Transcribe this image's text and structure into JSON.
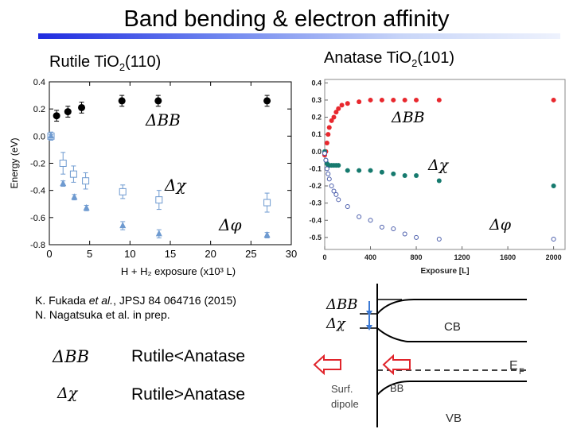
{
  "slide": {
    "title": "Band bending & electron affinity",
    "left_label": {
      "prefix": "Rutile Ti",
      "o": "O",
      "sub": "2",
      "suffix": "(110)"
    },
    "right_label": {
      "prefix": "Anatase Ti",
      "o": "O",
      "sub": "2",
      "suffix": "(101)"
    },
    "reference_1": {
      "pre": "K. Fukada ",
      "em": "et al.",
      "post": ", JPSJ 84 064716 (2015)"
    },
    "reference_2": "N. Nagatsuka et al. in prep.",
    "comparison": [
      {
        "symbol": "ΔBB",
        "text": "Rutile<Anatase"
      },
      {
        "symbol": "Δχ",
        "text": "Rutile>Anatase"
      }
    ]
  },
  "chart_data": [
    {
      "type": "scatter",
      "xlabel": "H + H₂ exposure (x10³ L)",
      "ylabel": "Energy (eV)",
      "xlim": [
        0,
        30
      ],
      "ylim": [
        -0.8,
        0.4
      ],
      "x_ticks": [
        "0",
        "5",
        "10",
        "15",
        "20",
        "25",
        "30"
      ],
      "y_ticks": [
        "0.4",
        "0.2",
        "0.0",
        "-0.2",
        "-0.4",
        "-0.6",
        "-0.8"
      ],
      "annotations": [
        "ΔBB",
        "Δχ",
        "Δφ"
      ],
      "series": [
        {
          "name": "ΔBB",
          "marker": "filled-circle",
          "color": "#000000",
          "x": [
            0.9,
            2.3,
            4.0,
            9.0,
            13.5,
            27.0
          ],
          "y": [
            0.15,
            0.18,
            0.21,
            0.26,
            0.26,
            0.26
          ],
          "err": [
            0.04,
            0.04,
            0.04,
            0.04,
            0.04,
            0.04
          ]
        },
        {
          "name": "Δχ",
          "marker": "open-square",
          "color": "#6e9ad0",
          "x": [
            0.2,
            1.7,
            3.0,
            4.5,
            9.1,
            13.6,
            27.0
          ],
          "y": [
            0.0,
            -0.2,
            -0.28,
            -0.33,
            -0.41,
            -0.47,
            -0.49
          ],
          "err": [
            0.03,
            0.08,
            0.06,
            0.06,
            0.05,
            0.07,
            0.07
          ]
        },
        {
          "name": "Δφ",
          "marker": "filled-triangle",
          "color": "#6e9ad0",
          "x": [
            0.2,
            1.7,
            3.1,
            4.6,
            9.1,
            13.6,
            27.0
          ],
          "y": [
            0.0,
            -0.35,
            -0.45,
            -0.53,
            -0.66,
            -0.72,
            -0.73
          ],
          "err": [
            0.01,
            0.02,
            0.02,
            0.02,
            0.03,
            0.03,
            0.02
          ]
        }
      ]
    },
    {
      "type": "scatter",
      "xlabel": "Exposure [L]",
      "ylabel": "",
      "xlim": [
        0,
        2100
      ],
      "ylim": [
        -0.57,
        0.42
      ],
      "x_ticks": [
        "0",
        "400",
        "800",
        "1200",
        "1600",
        "2000"
      ],
      "y_ticks": [
        "0.4",
        "0.3",
        "0.2",
        "0.1",
        "0.0",
        "-0.1",
        "-0.2",
        "-0.3",
        "-0.4",
        "-0.5"
      ],
      "annotations": [
        "ΔBB",
        "Δχ",
        "Δφ"
      ],
      "series": [
        {
          "name": "ΔBB",
          "marker": "filled-circle",
          "color": "#e8282e",
          "x": [
            0,
            10,
            20,
            30,
            40,
            60,
            80,
            100,
            120,
            150,
            200,
            300,
            400,
            500,
            600,
            700,
            800,
            1000,
            2000
          ],
          "y": [
            -0.02,
            0.0,
            0.05,
            0.1,
            0.14,
            0.18,
            0.2,
            0.23,
            0.25,
            0.27,
            0.28,
            0.29,
            0.3,
            0.3,
            0.3,
            0.3,
            0.3,
            0.3,
            0.3
          ],
          "err": []
        },
        {
          "name": "Δχ",
          "marker": "filled-circle",
          "color": "#167a6e",
          "x": [
            0,
            10,
            20,
            30,
            40,
            60,
            80,
            100,
            120,
            200,
            300,
            400,
            500,
            600,
            700,
            800,
            1000,
            2000
          ],
          "y": [
            0.0,
            -0.05,
            -0.07,
            -0.08,
            -0.08,
            -0.08,
            -0.08,
            -0.08,
            -0.08,
            -0.11,
            -0.11,
            -0.11,
            -0.12,
            -0.13,
            -0.14,
            -0.14,
            -0.17,
            -0.2
          ],
          "err": []
        },
        {
          "name": "Δφ",
          "marker": "open-circle",
          "color": "#4a5dab",
          "x": [
            0,
            10,
            20,
            30,
            40,
            60,
            80,
            100,
            120,
            200,
            300,
            400,
            500,
            600,
            700,
            800,
            1000,
            2000
          ],
          "y": [
            -0.01,
            -0.05,
            -0.1,
            -0.13,
            -0.16,
            -0.2,
            -0.23,
            -0.25,
            -0.28,
            -0.32,
            -0.38,
            -0.4,
            -0.44,
            -0.45,
            -0.48,
            -0.5,
            -0.51,
            -0.51
          ],
          "err": []
        }
      ]
    }
  ],
  "band_diagram": {
    "bb_label": "ΔBB",
    "chi_label": "Δχ",
    "cb": "CB",
    "ef": "E",
    "ef_sub": "F",
    "bb": "BB",
    "vb": "VB",
    "surf_dipole_1": "Surf.",
    "surf_dipole_2": "dipole",
    "arrow_color": "#e0242b",
    "marker_color": "#3b79d4"
  }
}
